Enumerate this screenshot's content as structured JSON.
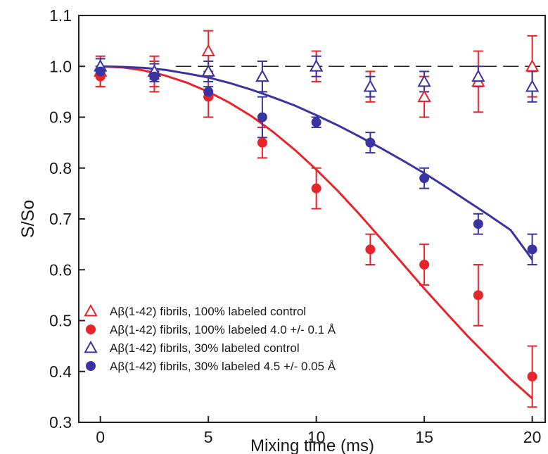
{
  "chart_data": {
    "type": "scatter",
    "xlabel": "Mixing time (ms)",
    "ylabel": "S/So",
    "xlim": [
      -1,
      20.6
    ],
    "ylim": [
      0.3,
      1.1
    ],
    "xticks": [
      0,
      5,
      10,
      15,
      20
    ],
    "xtick_labels": [
      "0",
      "5",
      "10",
      "15",
      "20"
    ],
    "yticks": [
      0.3,
      0.4,
      0.5,
      0.6,
      0.7,
      0.8,
      0.9,
      1.0,
      1.1
    ],
    "ytick_labels": [
      "0.3",
      "0.4",
      "0.5",
      "0.6",
      "0.7",
      "0.8",
      "0.9",
      "1.0",
      "1.1"
    ],
    "grid": false,
    "legend_position": "bottom-left",
    "reference_line": {
      "y": 1.0,
      "style": "dashed",
      "color": "#222222"
    },
    "series": [
      {
        "name": "Aβ(1-42) fibrils, 100% labeled control",
        "marker": "open-triangle",
        "color": "#e8242b",
        "x": [
          0,
          2.5,
          5,
          7.5,
          10,
          12.5,
          15,
          17.5,
          20
        ],
        "y": [
          0.99,
          0.99,
          1.03,
          0.98,
          1.0,
          0.96,
          0.94,
          0.97,
          1.0
        ],
        "err": [
          0.03,
          0.03,
          0.04,
          0.03,
          0.03,
          0.03,
          0.04,
          0.06,
          0.06
        ]
      },
      {
        "name": "Aβ(1-42) fibrils, 100% labeled 4.0 +/- 0.1 Å",
        "marker": "filled-circle",
        "color": "#e8242b",
        "x": [
          0,
          2.5,
          5,
          7.5,
          10,
          12.5,
          15,
          17.5,
          20
        ],
        "y": [
          0.98,
          0.98,
          0.94,
          0.85,
          0.76,
          0.64,
          0.61,
          0.55,
          0.39
        ],
        "err": [
          0.02,
          0.03,
          0.04,
          0.03,
          0.04,
          0.03,
          0.04,
          0.06,
          0.06
        ],
        "fit": {
          "x": [
            0,
            1,
            2,
            3,
            4,
            5,
            6,
            7,
            8,
            9,
            10,
            11,
            12,
            13,
            14,
            15,
            16,
            17,
            18,
            19,
            20
          ],
          "y": [
            1.0,
            0.998,
            0.992,
            0.982,
            0.968,
            0.95,
            0.928,
            0.902,
            0.871,
            0.836,
            0.797,
            0.755,
            0.709,
            0.661,
            0.612,
            0.563,
            0.516,
            0.47,
            0.427,
            0.385,
            0.347
          ]
        }
      },
      {
        "name": "Aβ(1-42) fibrils, 30% labeled control",
        "marker": "open-triangle",
        "color": "#3a34a0",
        "x": [
          0,
          2.5,
          5,
          7.5,
          10,
          12.5,
          15,
          17.5,
          20
        ],
        "y": [
          1.0,
          0.99,
          0.99,
          0.98,
          1.0,
          0.96,
          0.97,
          0.98,
          0.96
        ],
        "err": [
          0.015,
          0.015,
          0.02,
          0.03,
          0.02,
          0.02,
          0.02,
          0.02,
          0.03
        ]
      },
      {
        "name": "Aβ(1-42) fibrils, 30% labeled 4.5 +/- 0.05 Å",
        "marker": "filled-circle",
        "color": "#3a34a0",
        "x": [
          0,
          2.5,
          5,
          7.5,
          10,
          12.5,
          15,
          17.5,
          20
        ],
        "y": [
          0.99,
          0.98,
          0.95,
          0.9,
          0.89,
          0.85,
          0.78,
          0.69,
          0.64
        ],
        "err": [
          0.01,
          0.01,
          0.01,
          0.04,
          0.01,
          0.02,
          0.02,
          0.02,
          0.03
        ],
        "fit": {
          "x": [
            0,
            1,
            2,
            3,
            4,
            5,
            6,
            7,
            8,
            9,
            10,
            11,
            12,
            13,
            14,
            15,
            16,
            17,
            18,
            19,
            20
          ],
          "y": [
            1.0,
            0.999,
            0.997,
            0.993,
            0.986,
            0.978,
            0.967,
            0.954,
            0.939,
            0.923,
            0.904,
            0.884,
            0.862,
            0.839,
            0.815,
            0.79,
            0.763,
            0.735,
            0.707,
            0.678,
            0.62
          ]
        }
      }
    ]
  }
}
